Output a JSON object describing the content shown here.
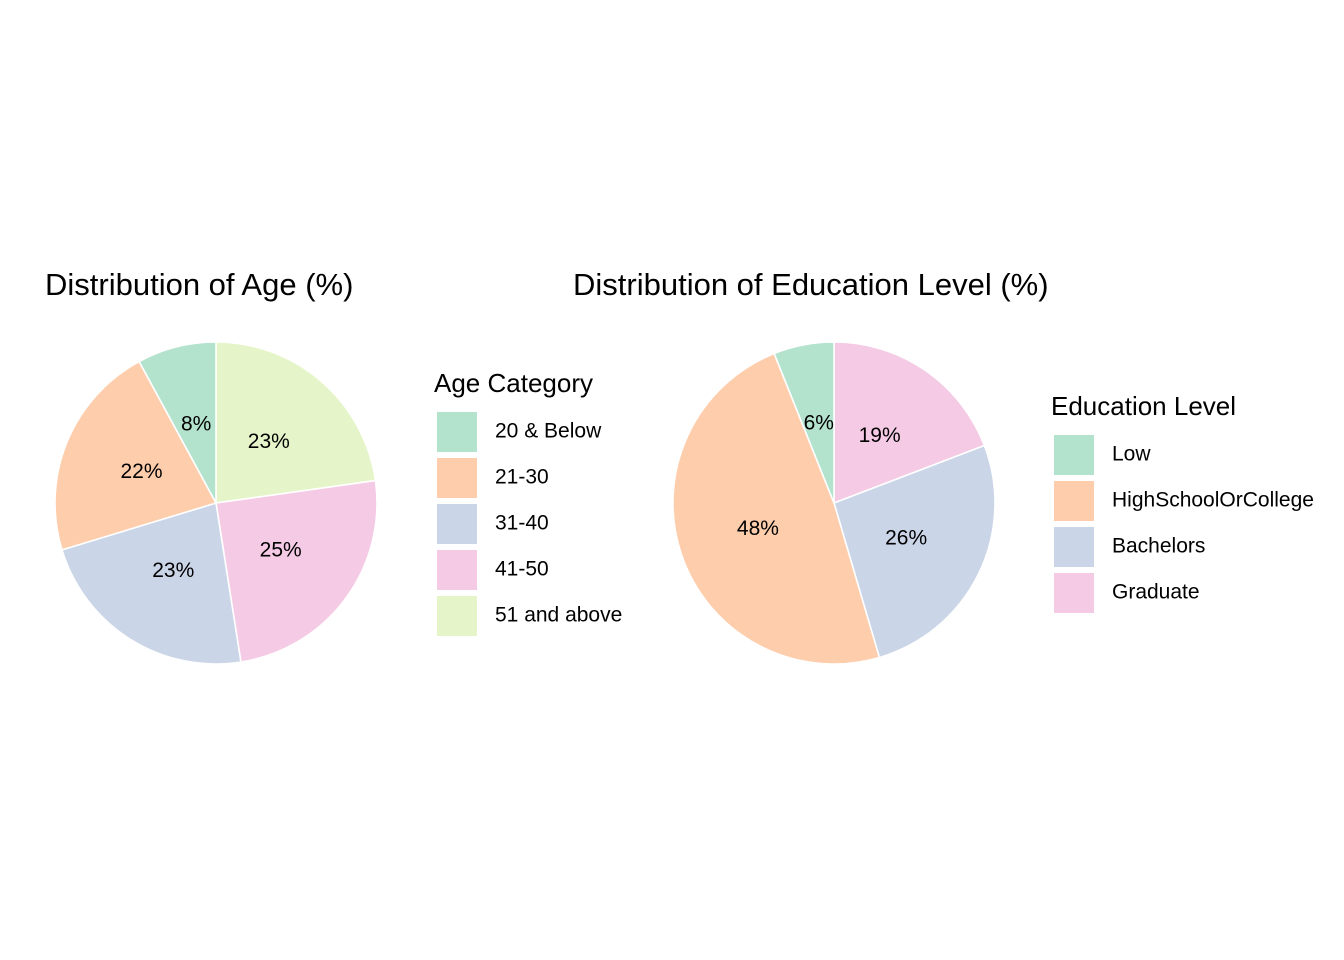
{
  "chart_data": [
    {
      "type": "pie",
      "title": "Distribution of Age (%)",
      "legend_title": "Age Category",
      "legend_position": "right",
      "direction": "clockwise",
      "start": "top",
      "categories": [
        "20 & Below",
        "21-30",
        "31-40",
        "41-50",
        "51 and above"
      ],
      "values": [
        8,
        22,
        23,
        25,
        23
      ],
      "labels": [
        "8%",
        "22%",
        "23%",
        "25%",
        "23%"
      ],
      "slice_order": [
        "51 and above",
        "41-50",
        "31-40",
        "21-30",
        "20 & Below"
      ],
      "colors": [
        "#B3E2CD",
        "#FDCDAC",
        "#CBD5E8",
        "#F4CAE4",
        "#E6F5C9"
      ]
    },
    {
      "type": "pie",
      "title": "Distribution of Education Level (%)",
      "legend_title": "Education Level",
      "legend_position": "right",
      "direction": "clockwise",
      "start": "top",
      "categories": [
        "Low",
        "HighSchoolOrCollege",
        "Bachelors",
        "Graduate"
      ],
      "values": [
        6,
        48,
        26,
        19
      ],
      "labels": [
        "6%",
        "48%",
        "26%",
        "19%"
      ],
      "slice_order": [
        "Graduate",
        "Bachelors",
        "HighSchoolOrCollege",
        "Low"
      ],
      "colors": [
        "#B3E2CD",
        "#FDCDAC",
        "#CBD5E8",
        "#F4CAE4"
      ]
    }
  ]
}
